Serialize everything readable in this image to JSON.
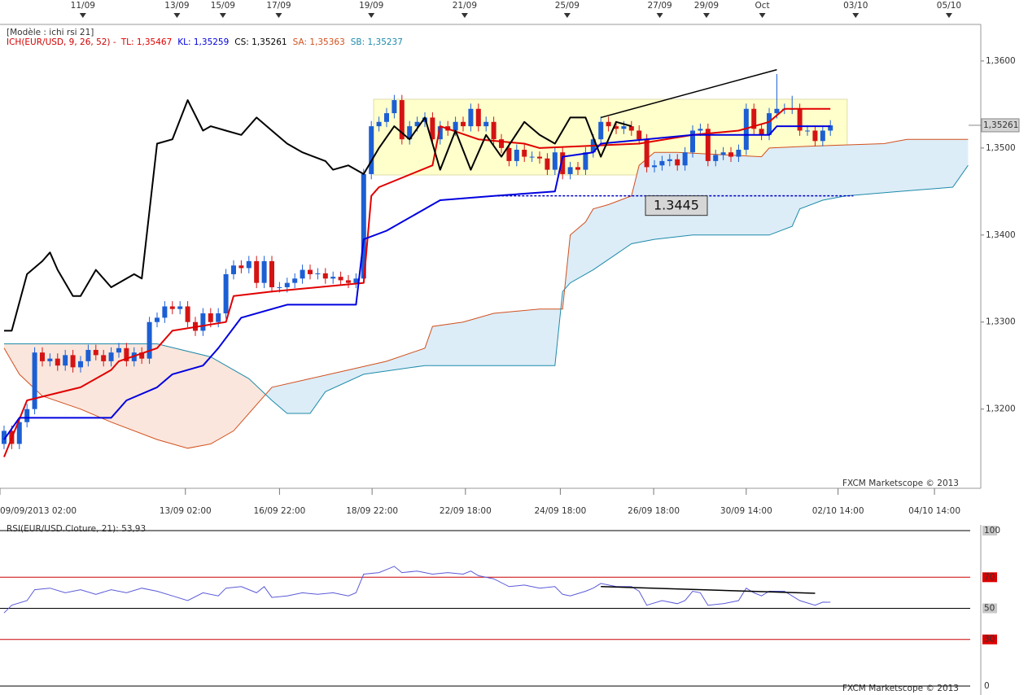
{
  "chart_data": [
    {
      "type": "candlestick",
      "subtitle": "[Modèle : ichi rsi 21]",
      "indicator_label": "ICH(EUR/USD, 9, 26, 52) -",
      "watermark": "FXCM Marketscope © 2013",
      "up_color": "#1c5fd4",
      "down_color": "#d41414",
      "xlim": [
        -0.53,
        126.06
      ],
      "ylim": [
        1.3109,
        1.3642
      ],
      "grid": false,
      "yticks": [
        {
          "value": 1.32,
          "label": "1,3200"
        },
        {
          "value": 1.33,
          "label": "1,3300"
        },
        {
          "value": 1.34,
          "label": "1,3400"
        },
        {
          "value": 1.35,
          "label": "1,3500"
        },
        {
          "value": 1.36,
          "label": "1,3600"
        }
      ],
      "xticks": [
        {
          "value": -0.53,
          "label": "09/09/2013 02:00"
        },
        {
          "value": 23.7,
          "label": "13/09 02:00"
        },
        {
          "value": 36,
          "label": "16/09 22:00"
        },
        {
          "value": 48.1,
          "label": "18/09 22:00"
        },
        {
          "value": 60.3,
          "label": "22/09 18:00"
        },
        {
          "value": 72.7,
          "label": "24/09 18:00"
        },
        {
          "value": 84.9,
          "label": "26/09 18:00"
        },
        {
          "value": 97,
          "label": "30/09 14:00"
        },
        {
          "value": 109,
          "label": "02/10 14:00"
        },
        {
          "value": 121.6,
          "label": "04/10 14:00"
        }
      ],
      "xticks_top": [
        {
          "value": 10.3,
          "label": "11/09"
        },
        {
          "value": 22.6,
          "label": "13/09"
        },
        {
          "value": 28.6,
          "label": "15/09"
        },
        {
          "value": 35.9,
          "label": "17/09"
        },
        {
          "value": 48,
          "label": "19/09"
        },
        {
          "value": 60.2,
          "label": "21/09"
        },
        {
          "value": 73.6,
          "label": "25/09"
        },
        {
          "value": 85.7,
          "label": "27/09"
        },
        {
          "value": 91.8,
          "label": "29/09"
        },
        {
          "value": 99.1,
          "label": "Oct"
        },
        {
          "value": 111.3,
          "label": "03/10"
        },
        {
          "value": 123.5,
          "label": "05/10"
        }
      ],
      "open": [
        1.316,
        1.3175,
        1.316,
        1.3185,
        1.32,
        1.3265,
        1.3255,
        1.3258,
        1.325,
        1.3262,
        1.3248,
        1.3255,
        1.3268,
        1.3262,
        1.3255,
        1.3265,
        1.327,
        1.3255,
        1.3265,
        1.3258,
        1.33,
        1.3305,
        1.3318,
        1.3315,
        1.3318,
        1.33,
        1.329,
        1.331,
        1.33,
        1.331,
        1.3355,
        1.3365,
        1.3362,
        1.337,
        1.3345,
        1.337,
        1.334,
        1.334,
        1.3345,
        1.335,
        1.336,
        1.3355,
        1.3356,
        1.335,
        1.3352,
        1.3348,
        1.3345,
        1.335,
        1.347,
        1.3525,
        1.353,
        1.354,
        1.3555,
        1.351,
        1.3525,
        1.353,
        1.3535,
        1.351,
        1.3525,
        1.352,
        1.353,
        1.3525,
        1.3545,
        1.3525,
        1.353,
        1.351,
        1.35,
        1.3485,
        1.3498,
        1.349,
        1.349,
        1.3488,
        1.3475,
        1.3495,
        1.347,
        1.3478,
        1.3475,
        1.3495,
        1.351,
        1.353,
        1.3525,
        1.3522,
        1.3525,
        1.352,
        1.351,
        1.3478,
        1.348,
        1.3485,
        1.3487,
        1.348,
        1.3495,
        1.352,
        1.3522,
        1.3485,
        1.3492,
        1.3495,
        1.349,
        1.3498,
        1.3545,
        1.3522,
        1.3515,
        1.354,
        1.3545,
        1.3545,
        1.3545,
        1.352,
        1.352,
        1.3508,
        1.352
      ],
      "high": [
        1.3181,
        1.3181,
        1.3191,
        1.3206,
        1.3271,
        1.3271,
        1.3264,
        1.3264,
        1.3268,
        1.3268,
        1.3261,
        1.3274,
        1.3274,
        1.3268,
        1.3271,
        1.3276,
        1.3276,
        1.3271,
        1.3271,
        1.3306,
        1.3311,
        1.3324,
        1.3324,
        1.3324,
        1.3324,
        1.3306,
        1.3316,
        1.3316,
        1.3316,
        1.3361,
        1.3371,
        1.3371,
        1.3376,
        1.3376,
        1.3376,
        1.3376,
        1.3346,
        1.3351,
        1.3356,
        1.3366,
        1.3366,
        1.3362,
        1.3362,
        1.3358,
        1.3358,
        1.3354,
        1.3356,
        1.3476,
        1.3531,
        1.3536,
        1.3546,
        1.3561,
        1.3561,
        1.3531,
        1.3536,
        1.3541,
        1.3541,
        1.3531,
        1.3531,
        1.3536,
        1.3536,
        1.3551,
        1.3551,
        1.3536,
        1.3536,
        1.3516,
        1.3506,
        1.3504,
        1.3504,
        1.3496,
        1.3496,
        1.3494,
        1.3501,
        1.3501,
        1.3484,
        1.3484,
        1.3501,
        1.3516,
        1.3536,
        1.3536,
        1.3531,
        1.3531,
        1.3531,
        1.3526,
        1.3516,
        1.3486,
        1.3491,
        1.3493,
        1.3493,
        1.3501,
        1.3526,
        1.3528,
        1.3528,
        1.3498,
        1.3501,
        1.3501,
        1.3504,
        1.3551,
        1.3551,
        1.3528,
        1.3546,
        1.3585,
        1.3551,
        1.356,
        1.3551,
        1.3526,
        1.3526,
        1.3526,
        1.3532
      ],
      "low": [
        1.3154,
        1.3154,
        1.3154,
        1.3179,
        1.3194,
        1.3249,
        1.3249,
        1.3244,
        1.3244,
        1.3242,
        1.3242,
        1.3249,
        1.3256,
        1.3249,
        1.3249,
        1.3259,
        1.3249,
        1.3249,
        1.3252,
        1.3252,
        1.3294,
        1.3299,
        1.3309,
        1.3309,
        1.3294,
        1.3284,
        1.3284,
        1.3294,
        1.3294,
        1.3304,
        1.3349,
        1.3356,
        1.3356,
        1.3339,
        1.3339,
        1.3334,
        1.3334,
        1.3334,
        1.3339,
        1.3344,
        1.3349,
        1.3349,
        1.3344,
        1.3344,
        1.3342,
        1.3339,
        1.3339,
        1.3344,
        1.3464,
        1.3519,
        1.3524,
        1.3534,
        1.3504,
        1.3504,
        1.3519,
        1.3524,
        1.3504,
        1.3504,
        1.3514,
        1.3514,
        1.3519,
        1.3519,
        1.3519,
        1.3519,
        1.3504,
        1.3494,
        1.3479,
        1.3479,
        1.3484,
        1.3484,
        1.3482,
        1.3469,
        1.3469,
        1.3464,
        1.3464,
        1.3469,
        1.3469,
        1.3489,
        1.3504,
        1.3519,
        1.3516,
        1.3516,
        1.3514,
        1.3504,
        1.3472,
        1.3472,
        1.3474,
        1.3479,
        1.3474,
        1.3474,
        1.3489,
        1.3514,
        1.3479,
        1.3479,
        1.3486,
        1.3484,
        1.3484,
        1.3492,
        1.3516,
        1.3509,
        1.3509,
        1.3534,
        1.3539,
        1.3539,
        1.3514,
        1.3514,
        1.3502,
        1.3502,
        1.3514
      ],
      "close": [
        1.3175,
        1.316,
        1.3185,
        1.32,
        1.3265,
        1.3255,
        1.3258,
        1.325,
        1.3262,
        1.3248,
        1.3255,
        1.3268,
        1.3262,
        1.3255,
        1.3265,
        1.327,
        1.3255,
        1.3265,
        1.3258,
        1.33,
        1.3305,
        1.3318,
        1.3315,
        1.3318,
        1.33,
        1.329,
        1.331,
        1.33,
        1.331,
        1.3355,
        1.3365,
        1.3362,
        1.337,
        1.3345,
        1.337,
        1.334,
        1.334,
        1.3345,
        1.335,
        1.336,
        1.3355,
        1.3356,
        1.335,
        1.3352,
        1.3348,
        1.3345,
        1.335,
        1.347,
        1.3525,
        1.353,
        1.354,
        1.3555,
        1.351,
        1.3525,
        1.353,
        1.3535,
        1.351,
        1.3525,
        1.352,
        1.353,
        1.3525,
        1.3545,
        1.3525,
        1.353,
        1.351,
        1.35,
        1.3485,
        1.3498,
        1.349,
        1.349,
        1.3488,
        1.3475,
        1.3495,
        1.347,
        1.3478,
        1.3475,
        1.3495,
        1.351,
        1.353,
        1.3525,
        1.3522,
        1.3525,
        1.352,
        1.351,
        1.3478,
        1.348,
        1.3485,
        1.3487,
        1.348,
        1.3495,
        1.352,
        1.3522,
        1.3485,
        1.3492,
        1.3495,
        1.349,
        1.3498,
        1.3545,
        1.3522,
        1.3515,
        1.354,
        1.3545,
        1.3545,
        1.3545,
        1.352,
        1.352,
        1.3508,
        1.352,
        1.3526
      ],
      "lines": [
        {
          "name": "TL: 1,35467",
          "color": "#e00000",
          "width": 2,
          "x": [
            0,
            3,
            10,
            14,
            15,
            20,
            22,
            29,
            30,
            35,
            47,
            48,
            49,
            56,
            57,
            62,
            68,
            70,
            83,
            90,
            96,
            100,
            102,
            108
          ],
          "values": [
            1.3145,
            1.321,
            1.3225,
            1.3245,
            1.3255,
            1.327,
            1.329,
            1.33,
            1.333,
            1.3335,
            1.3345,
            1.3445,
            1.3455,
            1.348,
            1.3525,
            1.351,
            1.3505,
            1.35,
            1.3505,
            1.3515,
            1.352,
            1.353,
            1.3545,
            1.3545
          ]
        },
        {
          "name": "KL: 1,35259",
          "color": "#0000e0",
          "width": 2,
          "x": [
            0,
            2,
            14,
            16,
            20,
            22,
            26,
            28,
            31,
            37,
            46,
            47,
            50,
            55,
            57,
            64,
            72,
            73,
            77,
            78,
            90,
            100,
            101,
            108
          ],
          "values": [
            1.3165,
            1.319,
            1.319,
            1.321,
            1.3225,
            1.324,
            1.325,
            1.327,
            1.3305,
            1.332,
            1.332,
            1.3395,
            1.3405,
            1.343,
            1.344,
            1.3445,
            1.345,
            1.349,
            1.3495,
            1.3505,
            1.3515,
            1.3515,
            1.3525,
            1.3525
          ]
        },
        {
          "name": "CS: 1,35261",
          "color": "#000000",
          "width": 2,
          "x": [
            0,
            1,
            3,
            5,
            6,
            7,
            9,
            10,
            12,
            14,
            16,
            17,
            18,
            20,
            22,
            24,
            26,
            27,
            29,
            31,
            33,
            35,
            37,
            39,
            42,
            43,
            45,
            47,
            49,
            51,
            53,
            55,
            57,
            59,
            61,
            63,
            65,
            68,
            70,
            72,
            74,
            76,
            78,
            80,
            82
          ],
          "values": [
            1.329,
            1.329,
            1.3355,
            1.337,
            1.338,
            1.336,
            1.333,
            1.333,
            1.336,
            1.334,
            1.335,
            1.3355,
            1.335,
            1.3505,
            1.351,
            1.3555,
            1.352,
            1.3525,
            1.352,
            1.3515,
            1.3535,
            1.352,
            1.3505,
            1.3495,
            1.3485,
            1.3475,
            1.348,
            1.347,
            1.35,
            1.3525,
            1.351,
            1.3535,
            1.3475,
            1.352,
            1.3475,
            1.3515,
            1.349,
            1.353,
            1.3515,
            1.3505,
            1.3535,
            1.3535,
            1.349,
            1.353,
            1.3525
          ]
        },
        {
          "name": "SA: 1,35363",
          "color": "#d2501e",
          "width": 1,
          "x": [
            0,
            2,
            5,
            10,
            14,
            20,
            24,
            27,
            30,
            35,
            40,
            45,
            50,
            55,
            56,
            60,
            64,
            70,
            73,
            74,
            76,
            77,
            79,
            82,
            83,
            85,
            88,
            99,
            100,
            105,
            115,
            118,
            126
          ],
          "values": [
            1.327,
            1.324,
            1.3215,
            1.32,
            1.3185,
            1.3165,
            1.3155,
            1.316,
            1.3175,
            1.3225,
            1.3235,
            1.3245,
            1.3255,
            1.327,
            1.3295,
            1.33,
            1.331,
            1.3315,
            1.3315,
            1.34,
            1.3415,
            1.343,
            1.3435,
            1.3445,
            1.348,
            1.3495,
            1.3495,
            1.349,
            1.35,
            1.3502,
            1.3505,
            1.351,
            1.351
          ]
        },
        {
          "name": "SB: 1,35237",
          "color": "#1e8aaa",
          "width": 1,
          "x": [
            0,
            12,
            20,
            27,
            32,
            35,
            37,
            40,
            42,
            47,
            55,
            72,
            73,
            74,
            77,
            82,
            85,
            90,
            100,
            103,
            104,
            107,
            110,
            117,
            124,
            126
          ],
          "values": [
            1.3275,
            1.3275,
            1.3275,
            1.326,
            1.3235,
            1.321,
            1.3195,
            1.3195,
            1.322,
            1.324,
            1.325,
            1.325,
            1.3335,
            1.3345,
            1.336,
            1.339,
            1.3395,
            1.34,
            1.34,
            1.341,
            1.343,
            1.344,
            1.3445,
            1.345,
            1.3455,
            1.348
          ]
        }
      ],
      "cloud_colors": [
        "#fae6dc",
        "#dcedf7"
      ],
      "range_box": {
        "x": [
          48.3,
          110.2
        ],
        "y": [
          1.3469,
          1.3556
        ],
        "color": "#ffffc4"
      },
      "trendline": {
        "x": [
          78,
          101
        ],
        "values": [
          1.3535,
          1.359
        ],
        "color": "#000000"
      },
      "level": {
        "value": 1.3445,
        "x": [
          64.5,
          111
        ],
        "color": "#0000c0"
      },
      "last_price": {
        "value": 1.35261,
        "label": "1,35261"
      }
    },
    {
      "type": "line",
      "title": "RSI(EUR/USD.Cloture, 21): 53,93",
      "watermark": "FXCM Marketscope © 2013",
      "color": "#5a5ad8",
      "xlim": [
        -0.53,
        126.06
      ],
      "ylim": [
        0,
        100
      ],
      "yticks": [
        0,
        30,
        50,
        70,
        100
      ],
      "tick_line_colors": [
        "#000000",
        "#cc0000",
        "#000000",
        "#cc0000",
        "#000000"
      ],
      "tick_label_backgrounds": [
        "#ffffff",
        "#dd0000",
        "#c8c8c8",
        "#dd0000",
        "#c8c8c8"
      ],
      "x": [
        0,
        1,
        3,
        4,
        6,
        8,
        10,
        12,
        14,
        16,
        18,
        20,
        22,
        24,
        26,
        28,
        29,
        31,
        33,
        34,
        35,
        37,
        39,
        41,
        43,
        45,
        46,
        47,
        49,
        50,
        51,
        52,
        54,
        56,
        58,
        60,
        61,
        62,
        64,
        66,
        68,
        70,
        72,
        73,
        74,
        76,
        77,
        78,
        80,
        82,
        83,
        84,
        86,
        88,
        89,
        90,
        91,
        92,
        94,
        96,
        97,
        98,
        99,
        100,
        101,
        102,
        104,
        106,
        107,
        108
      ],
      "values": [
        47,
        52,
        55,
        62,
        63,
        60,
        62,
        59,
        62,
        60,
        63,
        61,
        58,
        55,
        60,
        58,
        63,
        64,
        60,
        64,
        57,
        58,
        60,
        59,
        60,
        58,
        60,
        72,
        73,
        75,
        77,
        73,
        74,
        72,
        73,
        72,
        74,
        71,
        69,
        64,
        65,
        63,
        64,
        59,
        58,
        61,
        63,
        66,
        64,
        64,
        61,
        52,
        55,
        53,
        55,
        61,
        60,
        52,
        53,
        55,
        63,
        60,
        58,
        61,
        61,
        61,
        55,
        52,
        54,
        53.93
      ],
      "trendline": {
        "x": [
          78,
          106
        ],
        "values": [
          64,
          59.7
        ],
        "color": "#000000"
      }
    }
  ]
}
